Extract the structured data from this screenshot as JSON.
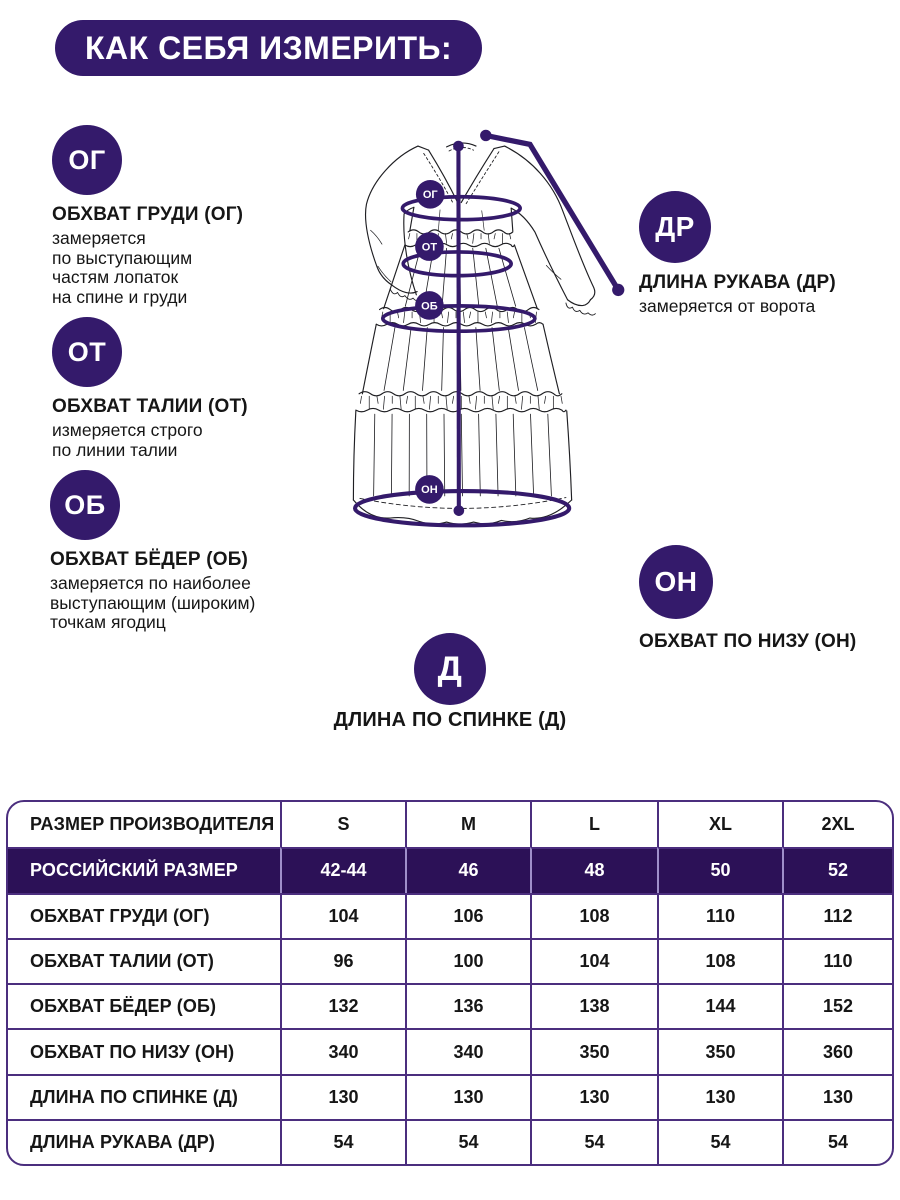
{
  "colors": {
    "accent_purple": "#341a6b",
    "table_highlight_bg": "#2c1157",
    "table_border": "#4b2e7e",
    "table_border_light": "#9f8fc9",
    "text": "#161616"
  },
  "header": {
    "title": "КАК СЕБЯ ИЗМЕРИТЬ:"
  },
  "guide": {
    "og": {
      "abbr": "ОГ",
      "title": "ОБХВАТ ГРУДИ (ОГ)",
      "desc": "замеряется\nпо выступающим\nчастям лопаток\nна спине и груди"
    },
    "ot": {
      "abbr": "ОТ",
      "title": "ОБХВАТ ТАЛИИ (ОТ)",
      "desc": "измеряется строго\nпо линии талии"
    },
    "ob": {
      "abbr": "ОБ",
      "title": "ОБХВАТ БЁДЕР (ОБ)",
      "desc": "замеряется по наиболее\nвыступающим (широким)\nточкам ягодиц"
    },
    "dr": {
      "abbr": "ДР",
      "title": "ДЛИНА РУКАВА (ДР)",
      "desc": "замеряется от ворота"
    },
    "on": {
      "abbr": "ОН",
      "title": "ОБХВАТ ПО НИЗУ (ОН)",
      "desc": ""
    },
    "d": {
      "abbr": "Д",
      "title": "ДЛИНА ПО СПИНКЕ (Д)",
      "desc": ""
    }
  },
  "dress_labels": {
    "og": "ОГ",
    "ot": "ОТ",
    "ob": "ОБ",
    "on": "ОН"
  },
  "size_table": {
    "columns": [
      "РАЗМЕР ПРОИЗВОДИТЕЛЯ",
      "S",
      "M",
      "L",
      "XL",
      "2XL"
    ],
    "rows": [
      {
        "label": "РОССИЙСКИЙ РАЗМЕР",
        "values": [
          "42-44",
          "46",
          "48",
          "50",
          "52"
        ],
        "highlight": true
      },
      {
        "label": "ОБХВАТ ГРУДИ (ОГ)",
        "values": [
          "104",
          "106",
          "108",
          "110",
          "112"
        ],
        "highlight": false
      },
      {
        "label": "ОБХВАТ ТАЛИИ (ОТ)",
        "values": [
          "96",
          "100",
          "104",
          "108",
          "110"
        ],
        "highlight": false
      },
      {
        "label": "ОБХВАТ БЁДЕР (ОБ)",
        "values": [
          "132",
          "136",
          "138",
          "144",
          "152"
        ],
        "highlight": false
      },
      {
        "label": "ОБХВАТ ПО НИЗУ (ОН)",
        "values": [
          "340",
          "340",
          "350",
          "350",
          "360"
        ],
        "highlight": false
      },
      {
        "label": "ДЛИНА ПО СПИНКЕ (Д)",
        "values": [
          "130",
          "130",
          "130",
          "130",
          "130"
        ],
        "highlight": false
      },
      {
        "label": "ДЛИНА РУКАВА (ДР)",
        "values": [
          "54",
          "54",
          "54",
          "54",
          "54"
        ],
        "highlight": false
      }
    ]
  }
}
